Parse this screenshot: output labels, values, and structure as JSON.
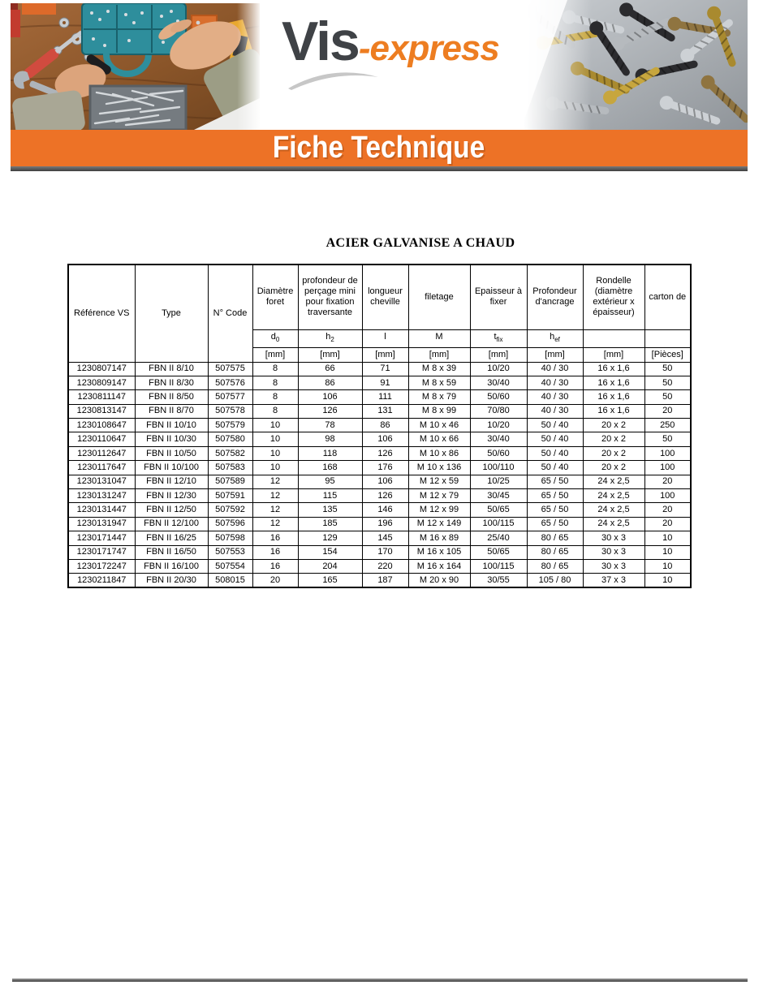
{
  "logo": {
    "part1": "Vis",
    "part2": "-express"
  },
  "banner": {
    "title": "Fiche Technique"
  },
  "doc_title": "ACIER GALVANISE A CHAUD",
  "colors": {
    "accent_orange": "#ED7226",
    "logo_gray": "#3F4246",
    "logo_orange": "#ED7D21",
    "dark_bar": "#4F4F4F",
    "table_border": "#000000"
  },
  "header_photos": {
    "left": "workbench-screw-organizer-photo",
    "right": "pile-of-screws-photo"
  },
  "table": {
    "headers": [
      "Référence VS",
      "Type",
      "N° Code",
      "Diamètre foret",
      "profondeur de perçage mini pour fixation traversante",
      "longueur cheville",
      "filetage",
      "Epaisseur à fixer",
      "Profondeur d'ancrage",
      "Rondelle (diamètre extérieur x épaisseur)",
      "carton de"
    ],
    "symbols": [
      {
        "base": "d",
        "sub": "0"
      },
      {
        "base": "h",
        "sub": "2"
      },
      {
        "base": "l",
        "sub": ""
      },
      {
        "base": "M",
        "sub": ""
      },
      {
        "base": "t",
        "sub": "fix"
      },
      {
        "base": "h",
        "sub": "ef"
      },
      {
        "base": "",
        "sub": ""
      },
      {
        "base": "",
        "sub": ""
      }
    ],
    "units": [
      "[mm]",
      "[mm]",
      "[mm]",
      "[mm]",
      "[mm]",
      "[mm]",
      "[mm]",
      "[Pièces]"
    ],
    "column_keys": [
      "reference",
      "type",
      "code",
      "diametre-foret",
      "profondeur-percage",
      "longueur-cheville",
      "filetage",
      "epaisseur-a-fixer",
      "profondeur-ancrage",
      "rondelle",
      "carton"
    ],
    "rows": [
      [
        "1230807147",
        "FBN II 8/10",
        "507575",
        "8",
        "66",
        "71",
        "M 8 x 39",
        "10/20",
        "40 / 30",
        "16 x 1,6",
        "50"
      ],
      [
        "1230809147",
        "FBN II 8/30",
        "507576",
        "8",
        "86",
        "91",
        "M 8 x 59",
        "30/40",
        "40 / 30",
        "16 x 1,6",
        "50"
      ],
      [
        "1230811147",
        "FBN II 8/50",
        "507577",
        "8",
        "106",
        "111",
        "M 8 x 79",
        "50/60",
        "40 / 30",
        "16 x 1,6",
        "50"
      ],
      [
        "1230813147",
        "FBN II 8/70",
        "507578",
        "8",
        "126",
        "131",
        "M 8 x 99",
        "70/80",
        "40 / 30",
        "16 x 1,6",
        "20"
      ],
      [
        "1230108647",
        "FBN II 10/10",
        "507579",
        "10",
        "78",
        "86",
        "M 10 x 46",
        "10/20",
        "50 / 40",
        "20 x 2",
        "250"
      ],
      [
        "1230110647",
        "FBN II 10/30",
        "507580",
        "10",
        "98",
        "106",
        "M 10 x 66",
        "30/40",
        "50 / 40",
        "20 x 2",
        "50"
      ],
      [
        "1230112647",
        "FBN II 10/50",
        "507582",
        "10",
        "118",
        "126",
        "M 10 x 86",
        "50/60",
        "50 / 40",
        "20 x 2",
        "100"
      ],
      [
        "1230117647",
        "FBN II 10/100",
        "507583",
        "10",
        "168",
        "176",
        "M 10 x 136",
        "100/110",
        "50 / 40",
        "20 x 2",
        "100"
      ],
      [
        "1230131047",
        "FBN II 12/10",
        "507589",
        "12",
        "95",
        "106",
        "M 12 x 59",
        "10/25",
        "65 / 50",
        "24 x 2,5",
        "20"
      ],
      [
        "1230131247",
        "FBN II 12/30",
        "507591",
        "12",
        "115",
        "126",
        "M 12 x 79",
        "30/45",
        "65 / 50",
        "24 x 2,5",
        "100"
      ],
      [
        "1230131447",
        "FBN II 12/50",
        "507592",
        "12",
        "135",
        "146",
        "M 12 x 99",
        "50/65",
        "65 / 50",
        "24 x 2,5",
        "20"
      ],
      [
        "1230131947",
        "FBN II 12/100",
        "507596",
        "12",
        "185",
        "196",
        "M 12 x 149",
        "100/115",
        "65 / 50",
        "24 x 2,5",
        "20"
      ],
      [
        "1230171447",
        "FBN II 16/25",
        "507598",
        "16",
        "129",
        "145",
        "M 16 x 89",
        "25/40",
        "80 / 65",
        "30 x 3",
        "10"
      ],
      [
        "1230171747",
        "FBN II 16/50",
        "507553",
        "16",
        "154",
        "170",
        "M 16 x 105",
        "50/65",
        "80 / 65",
        "30 x 3",
        "10"
      ],
      [
        "1230172247",
        "FBN II 16/100",
        "507554",
        "16",
        "204",
        "220",
        "M 16 x 164",
        "100/115",
        "80 / 65",
        "30 x 3",
        "10"
      ],
      [
        "1230211847",
        "FBN II 20/30",
        "508015",
        "20",
        "165",
        "187",
        "M 20 x 90",
        "30/55",
        "105 / 80",
        "37 x 3",
        "10"
      ]
    ]
  }
}
